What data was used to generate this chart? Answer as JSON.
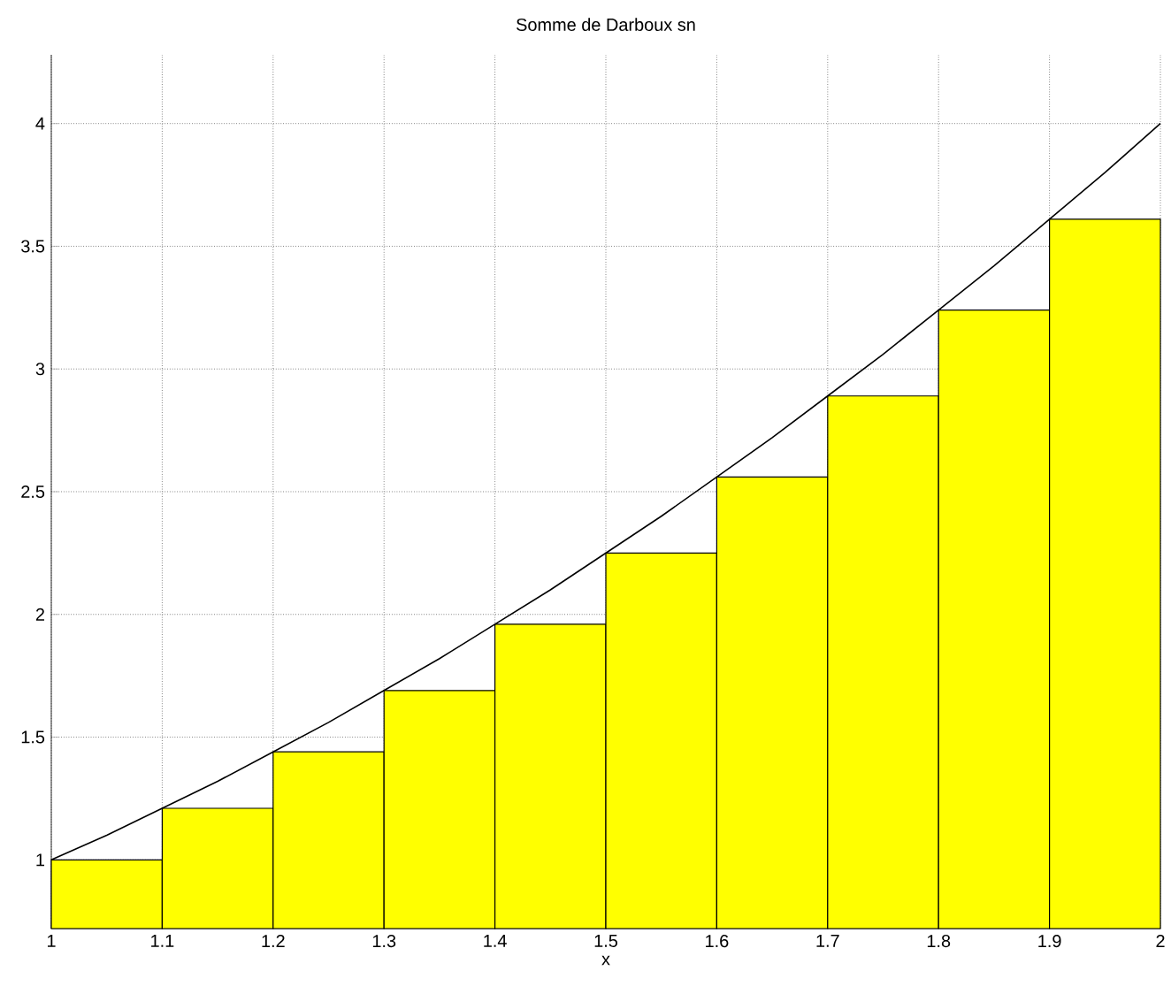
{
  "chart_data": {
    "type": "histogram",
    "title": "Somme de Darboux sn",
    "xlabel": "x",
    "bins": [
      1,
      1.1,
      1.2,
      1.3,
      1.4,
      1.5,
      1.6,
      1.7,
      1.8,
      1.9,
      2
    ],
    "values": [
      1,
      1.21,
      1.44,
      1.69,
      1.96,
      2.25,
      2.56,
      2.89,
      3.24,
      3.61
    ],
    "color": "#ffff00",
    "series": [
      {
        "type": "line",
        "color": "#000000",
        "x": [
          1,
          1.05,
          1.1,
          1.15,
          1.2,
          1.25,
          1.3,
          1.35,
          1.4,
          1.45,
          1.5,
          1.55,
          1.6,
          1.65,
          1.7,
          1.75,
          1.8,
          1.85,
          1.9,
          1.95,
          2
        ],
        "values": [
          1,
          1.1,
          1.21,
          1.32,
          1.44,
          1.56,
          1.69,
          1.82,
          1.96,
          2.1,
          2.25,
          2.4,
          2.56,
          2.72,
          2.89,
          3.06,
          3.24,
          3.42,
          3.61,
          3.8,
          4
        ]
      }
    ],
    "xlim": [
      1,
      2
    ],
    "ylim": [
      0.72,
      4.28
    ],
    "xticks": [
      1,
      1.1,
      1.2,
      1.3,
      1.4,
      1.5,
      1.6,
      1.7,
      1.8,
      1.9,
      2
    ],
    "yticks": [
      1,
      1.5,
      2,
      2.5,
      3,
      3.5,
      4
    ],
    "grid": true
  }
}
